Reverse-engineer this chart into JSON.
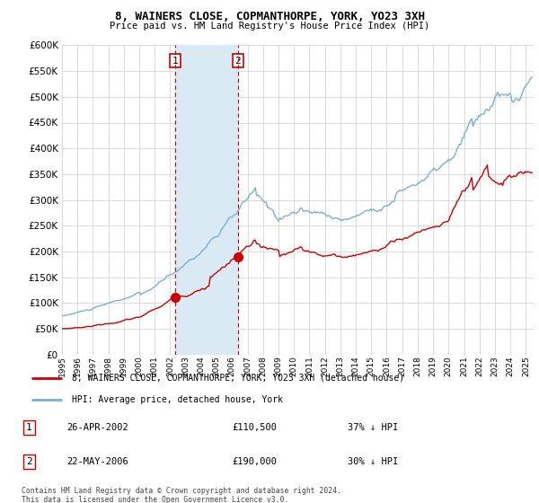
{
  "title": "8, WAINERS CLOSE, COPMANTHORPE, YORK, YO23 3XH",
  "subtitle": "Price paid vs. HM Land Registry's House Price Index (HPI)",
  "ylim": [
    0,
    600000
  ],
  "legend_label_red": "8, WAINERS CLOSE, COPMANTHORPE, YORK, YO23 3XH (detached house)",
  "legend_label_blue": "HPI: Average price, detached house, York",
  "transaction1_date": "26-APR-2002",
  "transaction1_price": "£110,500",
  "transaction1_hpi": "37% ↓ HPI",
  "transaction2_date": "22-MAY-2006",
  "transaction2_price": "£190,000",
  "transaction2_hpi": "30% ↓ HPI",
  "footnote": "Contains HM Land Registry data © Crown copyright and database right 2024.\nThis data is licensed under the Open Government Licence v3.0.",
  "vline1_x": 2002.3,
  "vline2_x": 2006.38,
  "shade_xmin": 2002.3,
  "shade_xmax": 2006.38,
  "red_color": "#cc0000",
  "blue_color": "#7ab0d4",
  "shade_color": "#daeaf5",
  "marker1_x": 2002.3,
  "marker1_y": 110500,
  "marker2_x": 2006.38,
  "marker2_y": 190000,
  "xmin": 1995.0,
  "xmax": 2025.5
}
